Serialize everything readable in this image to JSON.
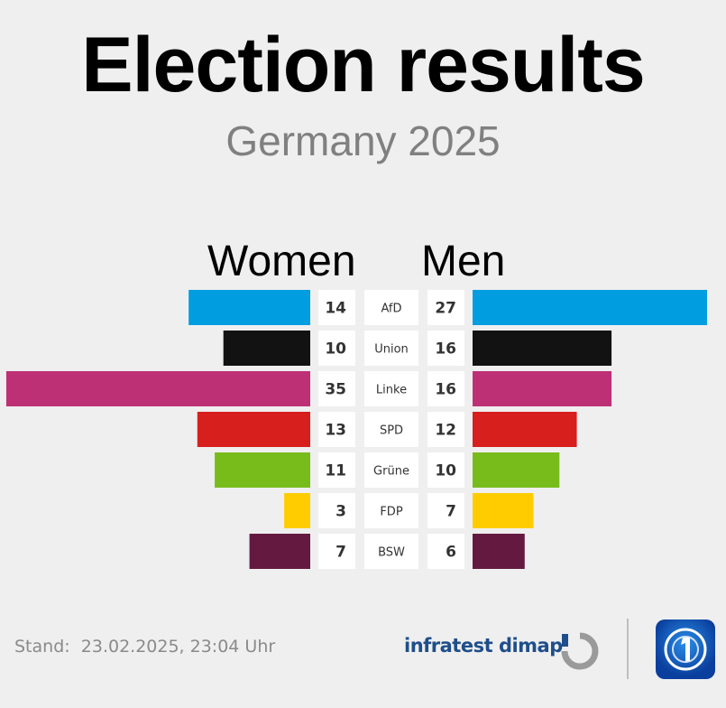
{
  "header": {
    "title": "Election results",
    "subtitle": "Germany 2025"
  },
  "chart_data": {
    "type": "bar",
    "orientation": "horizontal-butterfly",
    "unit": "%",
    "series_labels": {
      "left": "Women",
      "right": "Men"
    },
    "categories": [
      "AfD",
      "Union",
      "Linke",
      "SPD",
      "Grüne",
      "FDP",
      "BSW"
    ],
    "series": [
      {
        "name": "Women",
        "values": [
          14,
          10,
          35,
          13,
          11,
          3,
          7
        ]
      },
      {
        "name": "Men",
        "values": [
          27,
          16,
          16,
          12,
          10,
          7,
          6
        ]
      }
    ],
    "colors": [
      "#009ee0",
      "#121212",
      "#be3075",
      "#d71f1d",
      "#78bc1b",
      "#ffcc00",
      "#641a40"
    ]
  },
  "footer": {
    "stand_label": "Stand:",
    "stand_value": "23.02.2025, 23:04 Uhr",
    "source": "infratest dimap"
  }
}
